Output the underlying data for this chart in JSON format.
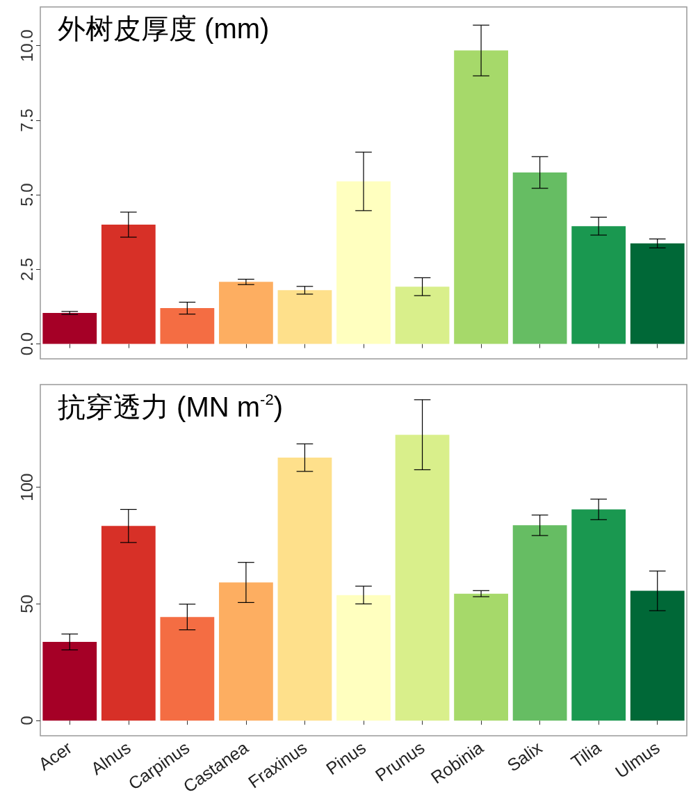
{
  "chart_data": [
    {
      "type": "bar",
      "title": "外树皮厚度 (mm)",
      "categories": [
        null,
        null,
        null,
        null,
        null,
        null,
        null,
        null,
        null,
        null,
        null
      ],
      "values": [
        1.04,
        4.0,
        1.2,
        2.08,
        1.8,
        5.45,
        1.92,
        9.84,
        5.75,
        3.95,
        3.37
      ],
      "errors": [
        0.05,
        0.42,
        0.2,
        0.09,
        0.13,
        0.98,
        0.3,
        0.85,
        0.53,
        0.3,
        0.15
      ],
      "colors": [
        "#a50026",
        "#d73027",
        "#f46d43",
        "#fdae61",
        "#fee08b",
        "#ffffbf",
        "#d9ef8b",
        "#a6d96a",
        "#66bd63",
        "#1a9850",
        "#006837"
      ],
      "ylim": [
        -0.5,
        11.3
      ],
      "yticks": [
        {
          "value": 0,
          "label": "0.0"
        },
        2.5,
        {
          "value": 5,
          "label": "5.0"
        },
        7.5,
        {
          "value": 10,
          "label": "10.0"
        }
      ],
      "grid": false,
      "tick_labels": "y"
    },
    {
      "type": "bar",
      "title": "抗穿透力 (MN m$^{-2}$)",
      "categories": [
        "Acer",
        "Alnus",
        "Carpinus",
        "Castanea",
        "Fraxinus",
        "Pinus",
        "Prunus",
        "Robinia",
        "Salix",
        "Tilia",
        "Ulmus"
      ],
      "values": [
        33.7,
        83.4,
        44.4,
        59.2,
        112.7,
        53.8,
        122.5,
        54.4,
        83.7,
        90.5,
        55.6
      ],
      "errors": [
        3.4,
        7.1,
        5.5,
        8.6,
        5.9,
        3.8,
        15,
        1.3,
        4.4,
        4.4,
        8.5
      ],
      "colors": [
        "#a50026",
        "#d73027",
        "#f46d43",
        "#fdae61",
        "#fee08b",
        "#ffffbf",
        "#d9ef8b",
        "#a6d96a",
        "#66bd63",
        "#1a9850",
        "#006837"
      ],
      "ylim": [
        -6.5,
        144
      ],
      "yticks": [
        0,
        50,
        100
      ],
      "grid": false
    }
  ]
}
